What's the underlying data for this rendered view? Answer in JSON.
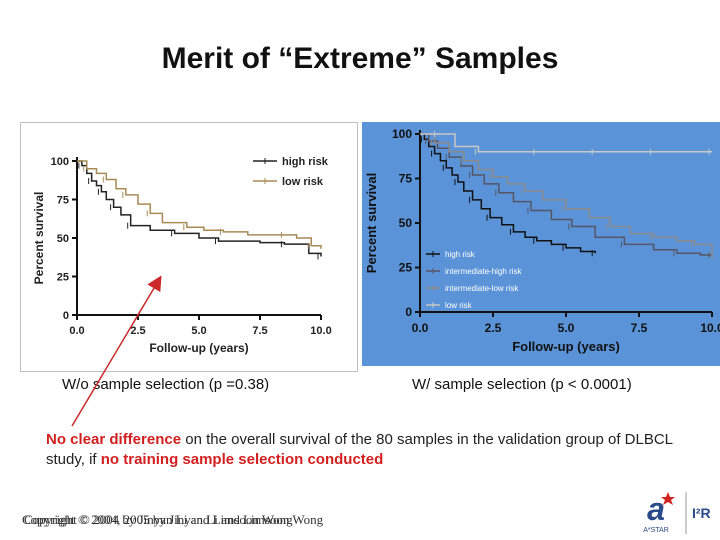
{
  "slide": {
    "title": "Merit of “Extreme” Samples",
    "caption_left": "W/o sample selection (p =0.38)",
    "caption_right": "W/ sample selection (p < 0.0001)",
    "note_highlight1": "No clear difference",
    "note_mid1": " on the overall survival of the 80 samples in the validation group of DLBCL study, if ",
    "note_highlight2": "no training sample selection conducted",
    "copyright": "Copyright © 2004, 2005 by Jinyan Li and Limsoon Wong",
    "copyright_ghost": "Copyright © 2004 by Jinyan Li and Limsoon Wong",
    "logo_text": "A*STAR",
    "logo_brand": "I²R",
    "colors": {
      "highlight": "#d21f1f",
      "arrow": "#cc2a2a",
      "right_panel_bg": "#5b93d8"
    }
  },
  "chart_data": [
    {
      "type": "line",
      "title": "",
      "xlabel": "Follow-up (years)",
      "ylabel": "Percent survival",
      "xlim": [
        0,
        10
      ],
      "ylim": [
        0,
        100
      ],
      "xticks": [
        "0.0",
        "2.5",
        "5.0",
        "7.5",
        "10.0"
      ],
      "yticks": [
        "0",
        "25",
        "50",
        "75",
        "100"
      ],
      "legend": "top-right",
      "series": [
        {
          "name": "high risk",
          "color": "#222222",
          "x": [
            0,
            0.2,
            0.4,
            0.6,
            0.8,
            1.0,
            1.2,
            1.5,
            1.8,
            2.2,
            3.0,
            4.0,
            5.0,
            5.8,
            7.5,
            8.5,
            9.5,
            10.0
          ],
          "y": [
            100,
            97,
            92,
            87,
            84,
            80,
            75,
            70,
            65,
            58,
            55,
            53,
            50,
            48,
            47,
            46,
            40,
            38
          ]
        },
        {
          "name": "low risk",
          "color": "#a88a55",
          "x": [
            0,
            0.4,
            0.8,
            1.2,
            1.6,
            2.0,
            2.5,
            3.0,
            3.5,
            4.5,
            5.2,
            6.0,
            7.0,
            8.5,
            9.0,
            9.6,
            10.0
          ],
          "y": [
            100,
            95,
            92,
            88,
            82,
            78,
            72,
            66,
            60,
            57,
            55,
            54,
            52,
            52,
            50,
            45,
            43
          ]
        }
      ]
    },
    {
      "type": "line",
      "title": "",
      "xlabel": "Follow-up (years)",
      "ylabel": "Percent survival",
      "xlim": [
        0,
        10
      ],
      "ylim": [
        0,
        100
      ],
      "xticks": [
        "0.0",
        "2.5",
        "5.0",
        "7.5",
        "10.0"
      ],
      "yticks": [
        "0",
        "25",
        "50",
        "75",
        "100"
      ],
      "legend": "bottom-left",
      "series": [
        {
          "name": "high risk",
          "color": "#111111",
          "x": [
            0,
            0.15,
            0.3,
            0.5,
            0.7,
            0.9,
            1.1,
            1.3,
            1.5,
            1.8,
            2.1,
            2.4,
            2.8,
            3.2,
            3.6,
            4.0,
            4.5,
            5.0,
            5.5,
            6.0
          ],
          "y": [
            100,
            97,
            93,
            89,
            85,
            81,
            77,
            73,
            68,
            63,
            58,
            53,
            49,
            45,
            42,
            40,
            38,
            36,
            34,
            33
          ]
        },
        {
          "name": "intermediate-high risk",
          "color": "#555566",
          "x": [
            0,
            0.3,
            0.6,
            1.0,
            1.4,
            1.8,
            2.2,
            2.7,
            3.2,
            3.8,
            4.5,
            5.2,
            6.0,
            7.0,
            8.0,
            8.8,
            9.6,
            10.0
          ],
          "y": [
            100,
            96,
            92,
            87,
            82,
            77,
            72,
            67,
            62,
            57,
            52,
            48,
            42,
            38,
            35,
            33,
            32,
            32
          ]
        },
        {
          "name": "intermediate-low risk",
          "color": "#8a8a8a",
          "x": [
            0,
            0.5,
            1.0,
            1.5,
            2.0,
            2.5,
            3.0,
            3.6,
            4.2,
            5.0,
            5.8,
            6.5,
            7.2,
            8.0,
            8.8,
            9.4,
            10.0
          ],
          "y": [
            100,
            95,
            90,
            85,
            80,
            76,
            72,
            68,
            63,
            58,
            53,
            48,
            44,
            42,
            40,
            38,
            30
          ]
        },
        {
          "name": "low risk",
          "color": "#c8c8c8",
          "x": [
            0,
            0.6,
            1.2,
            2.0,
            3.0,
            4.0,
            5.0,
            6.0,
            7.0,
            8.0,
            9.0,
            10.0
          ],
          "y": [
            100,
            100,
            93,
            90,
            90,
            90,
            90,
            90,
            90,
            90,
            90,
            90
          ]
        }
      ]
    }
  ]
}
